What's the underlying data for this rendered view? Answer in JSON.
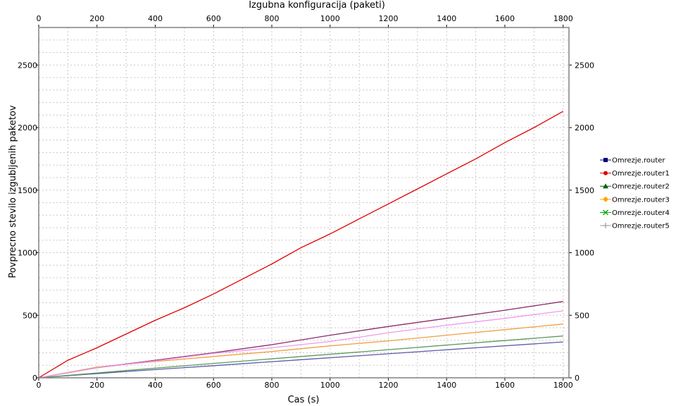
{
  "chart_data": {
    "type": "line",
    "title": "Izgubna konfiguracija (paketi)",
    "xlabel": "Cas (s)",
    "ylabel": "Povprecno stevilo izgubljenih paketov",
    "xlim": [
      0,
      1820
    ],
    "ylim": [
      0,
      2800
    ],
    "x_ticks": [
      0,
      200,
      400,
      600,
      800,
      1000,
      1200,
      1400,
      1600,
      1800
    ],
    "y_ticks": [
      0,
      500,
      1000,
      1500,
      2000,
      2500
    ],
    "grid": true,
    "legend_position": "right",
    "series": [
      {
        "name": "Omrezje.router",
        "color": "#000080",
        "line_color": "#5a5aa8",
        "marker": "square",
        "x": [
          0,
          300,
          600,
          900,
          1200,
          1500,
          1800
        ],
        "y": [
          0,
          50,
          97,
          145,
          192,
          240,
          287
        ]
      },
      {
        "name": "Omrezje.router1",
        "color": "#e00000",
        "line_color": "#e00000",
        "marker": "circle",
        "x": [
          0,
          100,
          200,
          300,
          400,
          500,
          600,
          700,
          800,
          900,
          1000,
          1100,
          1200,
          1300,
          1400,
          1500,
          1600,
          1700,
          1800
        ],
        "y": [
          0,
          140,
          240,
          350,
          460,
          560,
          670,
          790,
          910,
          1040,
          1150,
          1270,
          1390,
          1510,
          1630,
          1750,
          1880,
          2000,
          2130
        ]
      },
      {
        "name": "Omrezje.router2",
        "color": "#006400",
        "line_color": "#5a9a5a",
        "marker": "triangle",
        "x": [
          0,
          300,
          600,
          900,
          1200,
          1500,
          1800
        ],
        "y": [
          0,
          58,
          115,
          170,
          225,
          280,
          334
        ]
      },
      {
        "name": "Omrezje.router3",
        "color": "#ffa500",
        "line_color": "#f0a040",
        "marker": "diamond",
        "x": [
          0,
          200,
          400,
          600,
          800,
          1000,
          1200,
          1400,
          1600,
          1800
        ],
        "y": [
          0,
          85,
          130,
          170,
          210,
          255,
          295,
          340,
          385,
          430
        ]
      },
      {
        "name": "Omrezje.router4",
        "color": "#00a000",
        "line_color": "#8b2a6a",
        "marker": "x",
        "x": [
          0,
          200,
          400,
          600,
          800,
          1000,
          1200,
          1400,
          1600,
          1800
        ],
        "y": [
          0,
          80,
          140,
          200,
          265,
          340,
          410,
          475,
          540,
          610
        ]
      },
      {
        "name": "Omrezje.router5",
        "color": "#a0a0a0",
        "line_color": "#ee99ee",
        "marker": "plus",
        "x": [
          0,
          200,
          400,
          600,
          800,
          1000,
          1200,
          1400,
          1600,
          1800
        ],
        "y": [
          0,
          80,
          135,
          195,
          240,
          290,
          360,
          420,
          475,
          535
        ]
      }
    ]
  }
}
